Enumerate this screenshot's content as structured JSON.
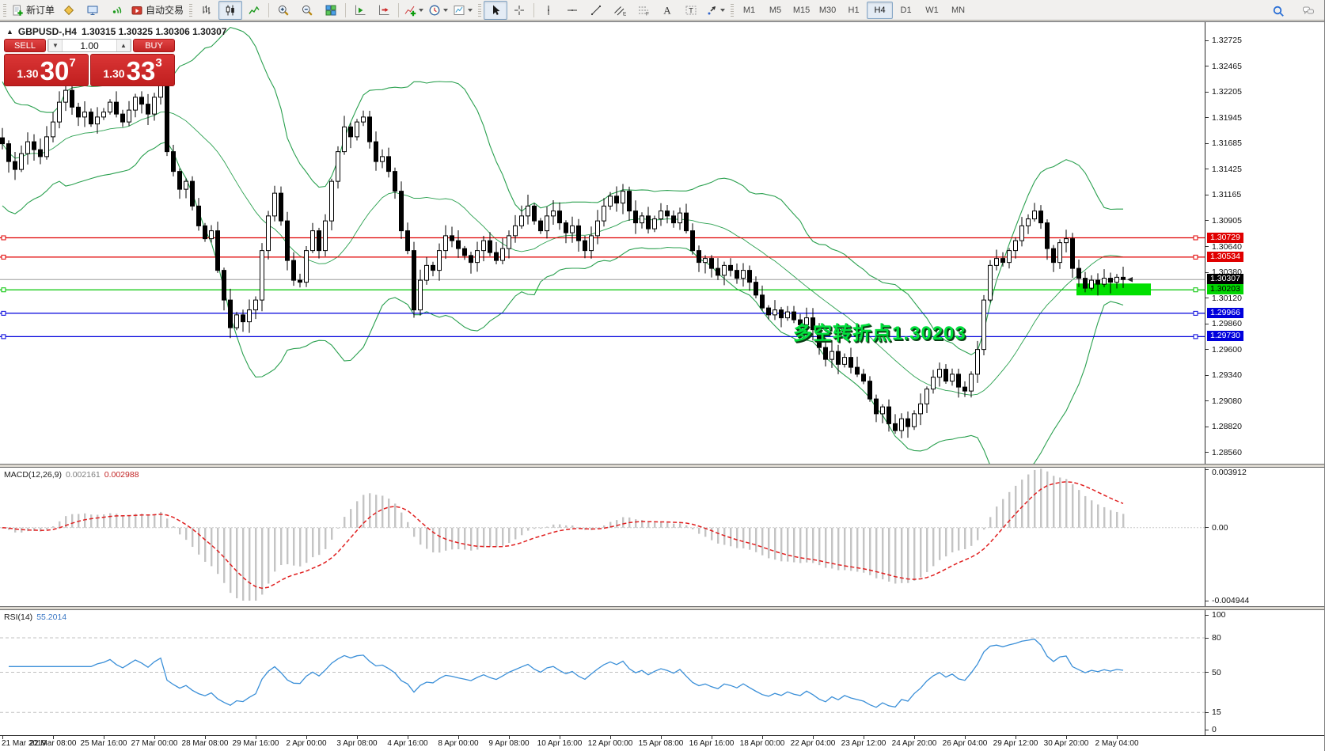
{
  "toolbar": {
    "groups": [
      {
        "items": [
          {
            "name": "new-order-button",
            "icon": "new-order",
            "label": "新订单"
          },
          {
            "name": "metaeditor-button",
            "icon": "metaeditor"
          },
          {
            "name": "terminal-button",
            "icon": "terminal"
          },
          {
            "name": "signals-button",
            "icon": "signals"
          },
          {
            "name": "autotrading-button",
            "icon": "autotrading",
            "label": "自动交易"
          }
        ]
      },
      {
        "items": [
          {
            "name": "bar-chart-button",
            "icon": "bar-chart"
          },
          {
            "name": "candlestick-chart-button",
            "icon": "candlestick",
            "pressed": true
          },
          {
            "name": "line-chart-button",
            "icon": "line-chart"
          },
          {
            "sep": true
          },
          {
            "name": "zoom-in-button",
            "icon": "zoom-in"
          },
          {
            "name": "zoom-out-button",
            "icon": "zoom-out"
          },
          {
            "name": "tile-windows-button",
            "icon": "tile-windows"
          },
          {
            "sep": true
          },
          {
            "name": "auto-scroll-button",
            "icon": "autoscroll"
          },
          {
            "name": "chart-shift-button",
            "icon": "chart-shift"
          },
          {
            "sep": true
          },
          {
            "name": "indicators-button",
            "icon": "indicators",
            "caret": true
          },
          {
            "name": "periods-button",
            "icon": "periods",
            "caret": true
          },
          {
            "name": "templates-button",
            "icon": "templates",
            "caret": true
          }
        ]
      },
      {
        "items": [
          {
            "name": "cursor-button",
            "icon": "cursor",
            "pressed": true
          },
          {
            "name": "crosshair-button",
            "icon": "crosshair"
          },
          {
            "sep": true
          },
          {
            "name": "vertical-line-button",
            "icon": "vline"
          },
          {
            "name": "horizontal-line-button",
            "icon": "hline"
          },
          {
            "name": "trendline-button",
            "icon": "trendline"
          },
          {
            "name": "equidistant-channel-button",
            "icon": "channel"
          },
          {
            "name": "fibonacci-button",
            "icon": "fibonacci"
          },
          {
            "name": "text-button",
            "icon": "text"
          },
          {
            "name": "text-label-button",
            "icon": "text-label"
          },
          {
            "name": "arrows-button",
            "icon": "arrows",
            "caret": true
          }
        ]
      },
      {
        "items": [
          {
            "name": "timeframe-m1",
            "tf": "M1"
          },
          {
            "name": "timeframe-m5",
            "tf": "M5"
          },
          {
            "name": "timeframe-m15",
            "tf": "M15"
          },
          {
            "name": "timeframe-m30",
            "tf": "M30"
          },
          {
            "name": "timeframe-h1",
            "tf": "H1"
          },
          {
            "name": "timeframe-h4",
            "tf": "H4",
            "pressed": true
          },
          {
            "name": "timeframe-d1",
            "tf": "D1"
          },
          {
            "name": "timeframe-w1",
            "tf": "W1"
          },
          {
            "name": "timeframe-mn",
            "tf": "MN"
          }
        ]
      }
    ],
    "right_icons": [
      {
        "name": "search-button",
        "icon": "search"
      },
      {
        "name": "chat-button",
        "icon": "chat"
      }
    ]
  },
  "chart": {
    "collapse_glyph": "▲",
    "symbol_period": "GBPUSD-,H4",
    "ohlc_text": "1.30315 1.30325 1.30306 1.30307"
  },
  "trade": {
    "sell_label": "SELL",
    "buy_label": "BUY",
    "volume": "1.00",
    "step_down_glyph": "▼",
    "step_up_glyph": "▲",
    "bid": {
      "big": "1.30",
      "pips": "30",
      "pipette": "7"
    },
    "ask": {
      "big": "1.30",
      "pips": "33",
      "pipette": "3"
    }
  },
  "annotation": {
    "text": "多空转折点1.30203",
    "color": "#00e03c"
  },
  "macd": {
    "title": "MACD(12,26,9)",
    "main_value": "0.002161",
    "signal_value": "0.002988",
    "axis_labels": [
      "0.003912",
      "0.00",
      "-0.004944"
    ]
  },
  "rsi": {
    "title": "RSI(14)",
    "value": "55.2014",
    "axis_labels": [
      "100",
      "80",
      "50",
      "15",
      "0"
    ]
  },
  "chart_data": {
    "type": "candlestick",
    "symbol": "GBPUSD-",
    "timeframe": "H4",
    "current_quote": {
      "open": 1.30315,
      "high": 1.30325,
      "low": 1.30306,
      "close": 1.30307
    },
    "bid": 1.30307,
    "ask": 1.30333,
    "y_axis_ticks": [
      1.32725,
      1.32465,
      1.32205,
      1.31945,
      1.31685,
      1.31425,
      1.31165,
      1.30905,
      1.3064,
      1.3038,
      1.3012,
      1.2986,
      1.296,
      1.2934,
      1.2908,
      1.2882,
      1.2856
    ],
    "x_ticks": [
      "21 Mar 2019",
      "22 Mar 08:00",
      "25 Mar 16:00",
      "27 Mar 00:00",
      "28 Mar 08:00",
      "29 Mar 16:00",
      "2 Apr 00:00",
      "3 Apr 08:00",
      "4 Apr 16:00",
      "8 Apr 00:00",
      "9 Apr 08:00",
      "10 Apr 16:00",
      "12 Apr 00:00",
      "15 Apr 08:00",
      "16 Apr 16:00",
      "18 Apr 00:00",
      "22 Apr 04:00",
      "23 Apr 12:00",
      "24 Apr 20:00",
      "26 Apr 04:00",
      "29 Apr 12:00",
      "30 Apr 20:00",
      "2 May 04:00"
    ],
    "bars_per_tick": 8,
    "closes": [
      1.3168,
      1.315,
      1.3142,
      1.3158,
      1.317,
      1.3162,
      1.3155,
      1.3175,
      1.319,
      1.321,
      1.3222,
      1.3205,
      1.3195,
      1.32,
      1.3188,
      1.3195,
      1.32,
      1.321,
      1.3198,
      1.319,
      1.3202,
      1.3215,
      1.3208,
      1.3198,
      1.3215,
      1.3228,
      1.316,
      1.314,
      1.3122,
      1.313,
      1.3105,
      1.3085,
      1.3072,
      1.308,
      1.304,
      1.301,
      1.2982,
      1.2995,
      1.2988,
      1.3,
      1.301,
      1.306,
      1.3095,
      1.3118,
      1.309,
      1.305,
      1.303,
      1.3028,
      1.306,
      1.308,
      1.306,
      1.309,
      1.313,
      1.316,
      1.3185,
      1.3175,
      1.319,
      1.3195,
      1.317,
      1.315,
      1.3155,
      1.314,
      1.312,
      1.308,
      1.306,
      1.3,
      1.303,
      1.3045,
      1.304,
      1.306,
      1.3075,
      1.307,
      1.3062,
      1.3055,
      1.3048,
      1.306,
      1.307,
      1.3058,
      1.305,
      1.3062,
      1.3075,
      1.3085,
      1.3095,
      1.3105,
      1.309,
      1.308,
      1.3095,
      1.31,
      1.3088,
      1.3078,
      1.3085,
      1.307,
      1.306,
      1.3075,
      1.309,
      1.3105,
      1.3115,
      1.3108,
      1.312,
      1.31,
      1.3088,
      1.3095,
      1.3082,
      1.3092,
      1.31,
      1.3095,
      1.3088,
      1.3098,
      1.308,
      1.306,
      1.3048,
      1.3052,
      1.3042,
      1.3035,
      1.3045,
      1.304,
      1.3032,
      1.304,
      1.3028,
      1.3015,
      1.3002,
      1.2995,
      1.3,
      1.2992,
      1.2998,
      1.299,
      1.2985,
      1.2992,
      1.298,
      1.2962,
      1.295,
      1.2958,
      1.2945,
      1.2952,
      1.2942,
      1.2935,
      1.2928,
      1.291,
      1.2895,
      1.2902,
      1.2885,
      1.2878,
      1.289,
      1.2882,
      1.2895,
      1.2905,
      1.292,
      1.2932,
      1.294,
      1.2928,
      1.2935,
      1.2922,
      1.2918,
      1.2935,
      1.296,
      1.301,
      1.3045,
      1.3052,
      1.3048,
      1.306,
      1.307,
      1.3085,
      1.3092,
      1.31,
      1.3088,
      1.3062,
      1.3048,
      1.3068,
      1.3072,
      1.3042,
      1.3032,
      1.3022,
      1.303,
      1.3026,
      1.3032,
      1.3028,
      1.3033,
      1.30307
    ],
    "hlines": [
      {
        "price": 1.30729,
        "color": "#e00000"
      },
      {
        "price": 1.30534,
        "color": "#e00000"
      },
      {
        "price": 1.30203,
        "color": "#00c400"
      },
      {
        "price": 1.29966,
        "color": "#0000dc"
      },
      {
        "price": 1.2973,
        "color": "#0000dc"
      }
    ],
    "current_price_line": {
      "price": 1.30307,
      "color": "#9c9c9c"
    },
    "price_tags": [
      {
        "text": "1.30729",
        "price": 1.30729,
        "bg": "#e00000",
        "fg": "#ffffff"
      },
      {
        "text": "1.30534",
        "price": 1.30534,
        "bg": "#e00000",
        "fg": "#ffffff"
      },
      {
        "text": "1.30307",
        "price": 1.30307,
        "bg": "#000000",
        "fg": "#ffffff"
      },
      {
        "text": "1.30203",
        "price": 1.30203,
        "bg": "#00d400",
        "fg": "#000000"
      },
      {
        "text": "1.29966",
        "price": 1.29966,
        "bg": "#0000dc",
        "fg": "#ffffff"
      },
      {
        "text": "1.29730",
        "price": 1.2973,
        "bg": "#0000dc",
        "fg": "#ffffff"
      }
    ],
    "highlight_bar": {
      "price": 1.30203,
      "from_bar": 170,
      "to_bar": 181,
      "color": "#00e000"
    },
    "bollinger": {
      "period": 20,
      "deviation": 2,
      "color": "#2aa04f"
    },
    "macd": {
      "fast": 12,
      "slow": 26,
      "signal": 9,
      "main": 0.002161,
      "signal_value": 0.002988,
      "y_max": 0.003912,
      "y_min": -0.004944,
      "hist_color": "#c4c4c4",
      "signal_color": "#e02020"
    },
    "rsi": {
      "period": 14,
      "value": 55.2014,
      "levels": [
        80,
        50,
        15
      ],
      "line_color": "#3a8fd8",
      "y_max": 100,
      "y_min": 0
    }
  }
}
